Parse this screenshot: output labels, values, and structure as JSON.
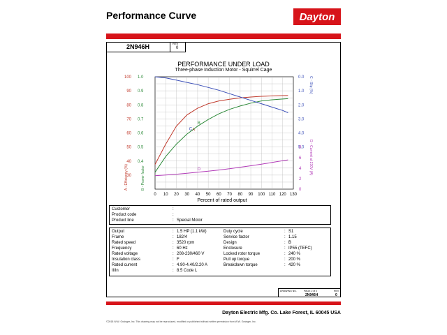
{
  "header": {
    "title": "Performance Curve",
    "logo_text": "Dayton"
  },
  "model_box": {
    "model": "2N946H",
    "rev_label": "REV",
    "rev_value": "0"
  },
  "chart_data": {
    "type": "line",
    "title": "PERFORMANCE UNDER LOAD",
    "subtitle": "Three-phase Induction Motor - Squirrel Cage",
    "xlabel": "Percent of rated output",
    "x_ticks": [
      0,
      10,
      20,
      30,
      40,
      50,
      60,
      70,
      80,
      90,
      100,
      110,
      120,
      130
    ],
    "xlim": [
      0,
      130
    ],
    "left_axis_efficiency": {
      "label": "A - Efficiency (%)",
      "ticks": [
        "100",
        "90",
        "80",
        "70",
        "60",
        "50",
        "40",
        "30"
      ]
    },
    "left_axis_power_factor": {
      "label": "B - Power factor",
      "ticks": [
        "1.0",
        "0.9",
        "0.8",
        "0.7",
        "0.6",
        "0.5",
        "0.4"
      ]
    },
    "right_axis_slip": {
      "label": "C - Slip (%)",
      "ticks": [
        "0.0",
        "1.0",
        "2.0",
        "3.0",
        "4.0",
        "5.0"
      ]
    },
    "right_axis_current": {
      "label": "D - Current at 230V (A)",
      "ticks": [
        "8",
        "6",
        "4",
        "2",
        "0"
      ]
    },
    "grid": true,
    "series": [
      {
        "name": "A",
        "color": "#c0392b",
        "points": [
          [
            0,
            22
          ],
          [
            10,
            40
          ],
          [
            20,
            56
          ],
          [
            30,
            66
          ],
          [
            40,
            72
          ],
          [
            50,
            76
          ],
          [
            60,
            78.5
          ],
          [
            70,
            80
          ],
          [
            80,
            81.2
          ],
          [
            90,
            82
          ],
          [
            100,
            82.6
          ],
          [
            110,
            83
          ],
          [
            120,
            83.2
          ],
          [
            125,
            83.3
          ]
        ]
      },
      {
        "name": "B",
        "color": "#2e8b3a",
        "points": [
          [
            0,
            15
          ],
          [
            10,
            29
          ],
          [
            20,
            40
          ],
          [
            30,
            49
          ],
          [
            40,
            56
          ],
          [
            50,
            62
          ],
          [
            60,
            67
          ],
          [
            70,
            71
          ],
          [
            80,
            74
          ],
          [
            90,
            76.5
          ],
          [
            100,
            78.5
          ],
          [
            110,
            79.5
          ],
          [
            120,
            80.2
          ],
          [
            125,
            80.5
          ]
        ]
      },
      {
        "name": "C",
        "color": "#3b4fb8",
        "points": [
          [
            0,
            100
          ],
          [
            10,
            99
          ],
          [
            20,
            97
          ],
          [
            30,
            95
          ],
          [
            40,
            93
          ],
          [
            50,
            90.5
          ],
          [
            60,
            88
          ],
          [
            70,
            85
          ],
          [
            80,
            82
          ],
          [
            90,
            79
          ],
          [
            100,
            76
          ],
          [
            110,
            73
          ],
          [
            120,
            70
          ],
          [
            125,
            68
          ]
        ]
      },
      {
        "name": "D",
        "color": "#b23bb8",
        "points": [
          [
            0,
            12
          ],
          [
            10,
            12.6
          ],
          [
            20,
            13.3
          ],
          [
            30,
            14.1
          ],
          [
            40,
            15
          ],
          [
            50,
            16
          ],
          [
            60,
            17
          ],
          [
            70,
            18.2
          ],
          [
            80,
            19.5
          ],
          [
            90,
            20.8
          ],
          [
            100,
            22.2
          ],
          [
            110,
            23.7
          ],
          [
            120,
            25.3
          ],
          [
            125,
            26
          ]
        ]
      }
    ]
  },
  "info_table": [
    {
      "label": "Customer",
      "value": ""
    },
    {
      "label": "Product code",
      "value": ""
    },
    {
      "label": "Product line",
      "value": "Special Motor"
    }
  ],
  "spec_left": [
    {
      "label": "Output",
      "value": "1.5 HP (1.1 kW)"
    },
    {
      "label": "Frame",
      "value": "182/4"
    },
    {
      "label": "Rated speed",
      "value": "3520 rpm"
    },
    {
      "label": "Frequency",
      "value": "60 Hz"
    },
    {
      "label": "Rated voltage",
      "value": "208-230/460 V"
    },
    {
      "label": "Insulation class",
      "value": "F"
    },
    {
      "label": "Rated current",
      "value": "4.90-4.40/2.20 A"
    },
    {
      "label": "Il/In",
      "value": "8.5 Code L"
    }
  ],
  "spec_right": [
    {
      "label": "Duty cycle",
      "value": "S1"
    },
    {
      "label": "Service factor",
      "value": "1.15"
    },
    {
      "label": "Design",
      "value": "B"
    },
    {
      "label": "Enclosure",
      "value": "IP55 (TEFC)"
    },
    {
      "label": "Locked rotor torque",
      "value": "240 %"
    },
    {
      "label": "Pull up torque",
      "value": "200 %"
    },
    {
      "label": "Breakdown torque",
      "value": "420 %"
    }
  ],
  "drawing_info": {
    "drawing_no_label": "DRAWING NO.",
    "drawing_no": "2N946H",
    "page_label": "PAGE 2 of 2",
    "rev_label": "REV",
    "rev_value": "0"
  },
  "footer": {
    "company": "Dayton Electric Mfg. Co.  Lake Forest, IL  60045  USA",
    "copyright": "©2018 W.W. Grainger, Inc.  This drawing may not be reproduced, modified or published without written permission from W.W. Grainger, Inc."
  }
}
